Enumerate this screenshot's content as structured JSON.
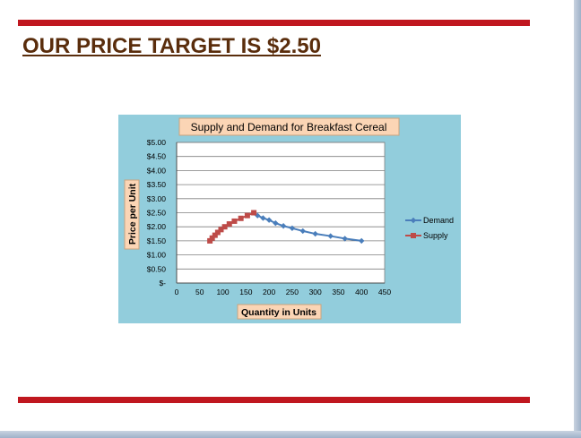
{
  "slide": {
    "title": "OUR PRICE TARGET IS $2.50"
  },
  "colors": {
    "accent_bar": "#c0171f",
    "title_text": "#5a2d0c",
    "chart_background": "#92cddc",
    "label_box": "#fbd5b5",
    "demand": "#4a7ebb",
    "supply": "#be4b48"
  },
  "chart_data": {
    "type": "line",
    "title": "Supply  and Demand for Breakfast Cereal",
    "xlabel": "Quantity in Units",
    "ylabel": "Price per Unit",
    "xlim": [
      0,
      450
    ],
    "ylim": [
      0,
      5
    ],
    "x_ticks": [
      "0",
      "50",
      "100",
      "150",
      "200",
      "250",
      "300",
      "350",
      "400",
      "450"
    ],
    "y_ticks": [
      "$-",
      "$0.50",
      "$1.00",
      "$1.50",
      "$2.00",
      "$2.50",
      "$3.00",
      "$3.50",
      "$4.00",
      "$4.50",
      "$5.00"
    ],
    "grid": true,
    "legend_position": "right",
    "series": [
      {
        "name": "Demand",
        "marker": "diamond",
        "x": [
          167,
          175,
          187,
          200,
          214,
          231,
          250,
          273,
          300,
          333,
          364,
          400
        ],
        "y": [
          2.5,
          2.4,
          2.31,
          2.24,
          2.13,
          2.03,
          1.95,
          1.85,
          1.75,
          1.67,
          1.58,
          1.5
        ]
      },
      {
        "name": "Supply",
        "marker": "square",
        "x": [
          72,
          77,
          83,
          89,
          96,
          104,
          114,
          125,
          139,
          153,
          167
        ],
        "y": [
          1.5,
          1.6,
          1.7,
          1.8,
          1.9,
          2.0,
          2.1,
          2.2,
          2.3,
          2.4,
          2.5
        ]
      }
    ]
  }
}
